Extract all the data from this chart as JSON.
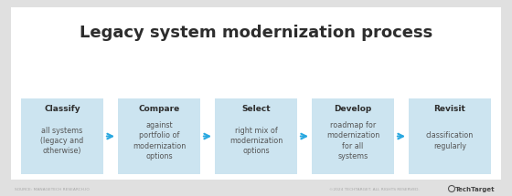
{
  "title": "Legacy system modernization process",
  "title_fontsize": 13,
  "title_color": "#2d2d2d",
  "background_color": "#e0e0e0",
  "panel_color": "#ffffff",
  "box_color": "#cce4f0",
  "box_border_color": "#cce4f0",
  "arrow_color": "#29a8e0",
  "text_color_bold": "#2d2d2d",
  "text_color_body": "#555555",
  "footer_left": "SOURCE: MANAGETECH RESEARCH.IO",
  "footer_right": "©2024 TECHTARGET. ALL RIGHTS RESERVED.",
  "footer_logo": "TechTarget",
  "steps": [
    {
      "bold": "Classify",
      "body": "all systems\n(legacy and\notherwise)"
    },
    {
      "bold": "Compare",
      "body": "against\nportfolio of\nmodernization\noptions"
    },
    {
      "bold": "Select",
      "body": "right mix of\nmodernization\noptions"
    },
    {
      "bold": "Develop",
      "body": "roadmap for\nmodernization\nfor all\nsystems"
    },
    {
      "bold": "Revisit",
      "body": "classification\nregularly"
    }
  ]
}
